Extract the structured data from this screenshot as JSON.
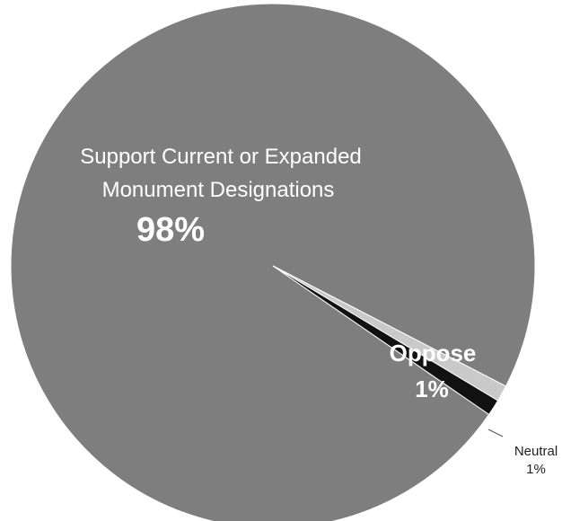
{
  "chart_data": {
    "type": "pie",
    "title": "",
    "slices": [
      {
        "label_lines": [
          "Support Current or Expanded",
          "Monument Designations"
        ],
        "value_label": "98%",
        "value": 98,
        "color": "#7e7e7e"
      },
      {
        "label_lines": [
          "Oppose"
        ],
        "value_label": "1%",
        "value": 1,
        "color": "#111111"
      },
      {
        "label_lines": [
          "Neutral"
        ],
        "value_label": "1%",
        "value": 1,
        "color": "#c9c9c9"
      }
    ],
    "separator_color": "#ffffff",
    "label_color_inside": "#ffffff",
    "label_color_outside": "#222222"
  }
}
